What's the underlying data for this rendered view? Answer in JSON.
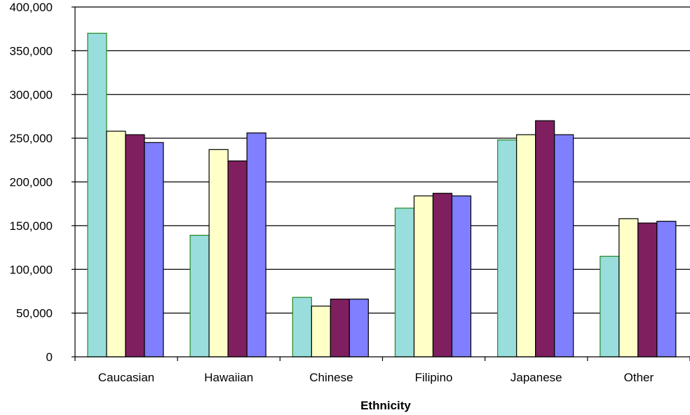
{
  "chart_data": {
    "type": "bar",
    "title": "",
    "xlabel": "Ethnicity",
    "ylabel": "",
    "categories": [
      "Caucasian",
      "Hawaiian",
      "Chinese",
      "Filipino",
      "Japanese",
      "Other"
    ],
    "series": [
      {
        "color": "#99dddd",
        "stroke": "#228822",
        "values": [
          370000,
          139000,
          68000,
          170000,
          248000,
          115000
        ]
      },
      {
        "color": "#ffffc8",
        "stroke": "#000000",
        "values": [
          258000,
          237000,
          58000,
          184000,
          254000,
          158000
        ]
      },
      {
        "color": "#7f1f5f",
        "stroke": "#000000",
        "values": [
          254000,
          224000,
          66000,
          187000,
          270000,
          153000
        ]
      },
      {
        "color": "#7f7fff",
        "stroke": "#000000",
        "values": [
          245000,
          256000,
          66000,
          184000,
          254000,
          155000
        ]
      }
    ],
    "ylim": [
      0,
      400000
    ],
    "yticks": [
      0,
      50000,
      100000,
      150000,
      200000,
      250000,
      300000,
      350000,
      400000
    ],
    "ytick_labels": [
      "0",
      "50,000",
      "100,000",
      "150,000",
      "200,000",
      "250,000",
      "300,000",
      "350,000",
      "400,000"
    ],
    "grid": true,
    "legend": "none"
  }
}
